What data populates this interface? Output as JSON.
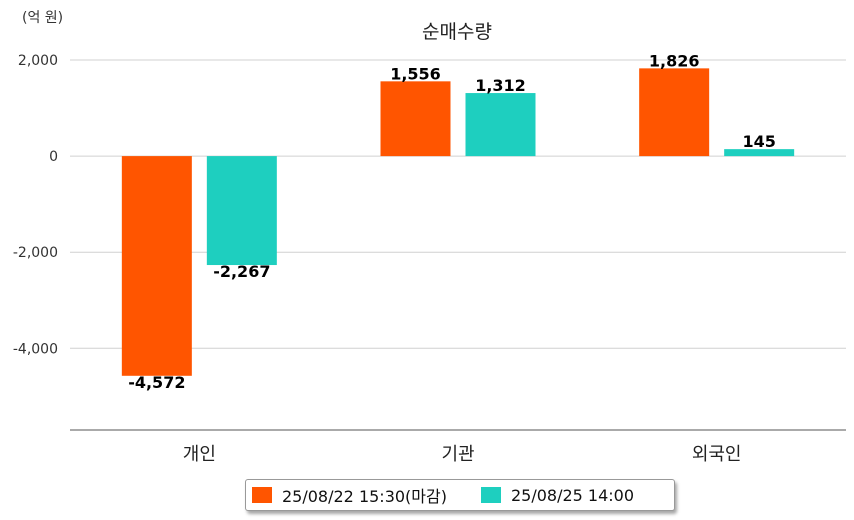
{
  "chart_data": {
    "type": "bar",
    "title": "순매수량",
    "unit_label": "(억 원)",
    "categories": [
      "개인",
      "기관",
      "외국인"
    ],
    "series": [
      {
        "name": "25/08/22 15:30(마감)",
        "color": "#ff5500",
        "values": [
          -4572,
          1556,
          1826
        ],
        "labels": [
          "-4,572",
          "1,556",
          "1,826"
        ]
      },
      {
        "name": "25/08/25 14:00",
        "color": "#1ecfbf",
        "values": [
          -2267,
          1312,
          145
        ],
        "labels": [
          "-2,267",
          "1,312",
          "145"
        ]
      }
    ],
    "yticks": [
      2000,
      0,
      -2000,
      -4000
    ],
    "ytick_labels": [
      "2,000",
      "0",
      "-2,000",
      "-4,000"
    ],
    "ylim": [
      -5700,
      2000
    ],
    "grid": true,
    "legend_position": "bottom"
  }
}
